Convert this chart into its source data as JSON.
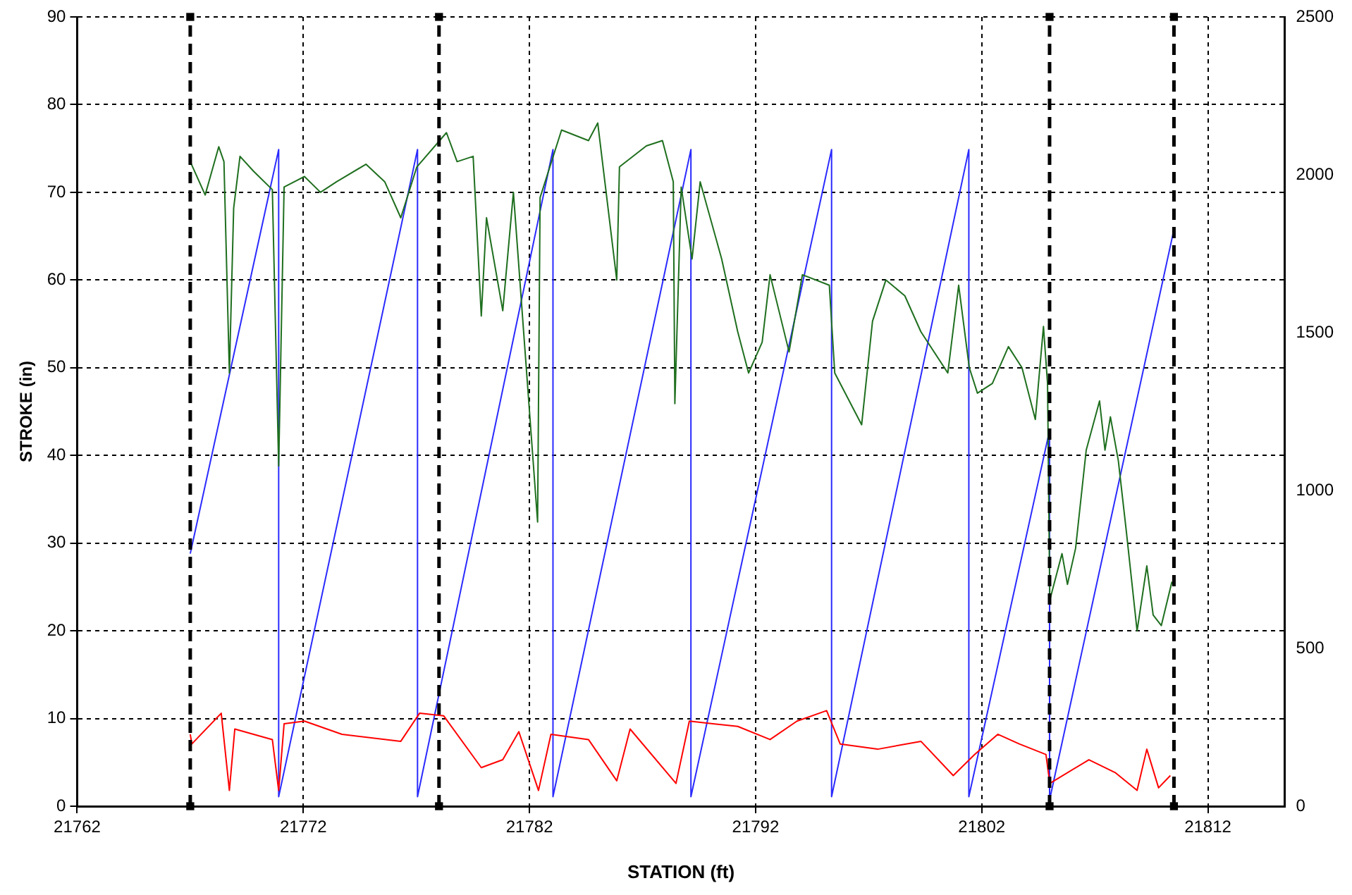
{
  "chart_data": {
    "type": "line",
    "xlabel": "STATION (ft)",
    "ylabel": "STROKE (in)",
    "xlim": [
      21762,
      21815.4
    ],
    "xticks": [
      21762,
      21772,
      21782,
      21792,
      21802,
      21812
    ],
    "ylim": [
      0,
      90
    ],
    "yticks": [
      0,
      10,
      20,
      30,
      40,
      50,
      60,
      70,
      80,
      90
    ],
    "y2lim": [
      0,
      2500
    ],
    "y2ticks": [
      0,
      500,
      1000,
      1500,
      2000,
      2500
    ],
    "grid": true,
    "legend": false,
    "marker": "none",
    "line_style": "solid",
    "series": [
      {
        "color": "#000000",
        "line_style": "dashed",
        "marker": "square",
        "x": [
          21767.0,
          21767.0
        ],
        "values": [
          0,
          90
        ]
      },
      {
        "color": "#000000",
        "line_style": "dashed",
        "marker": "square",
        "x": [
          21778.0,
          21778.0
        ],
        "values": [
          0,
          90
        ]
      },
      {
        "color": "#000000",
        "line_style": "dashed",
        "marker": "square",
        "x": [
          21805.0,
          21805.0
        ],
        "values": [
          0,
          90
        ]
      },
      {
        "color": "#000000",
        "line_style": "dashed",
        "marker": "square",
        "x": [
          21810.5,
          21810.5
        ],
        "values": [
          0,
          90
        ]
      },
      {
        "color": "#1f6f1f",
        "x": [
          21767.0,
          21767.66,
          21768.26,
          21768.49,
          21768.73,
          21768.92,
          21769.2,
          21769.8,
          21770.63,
          21770.91,
          21771.15,
          21772.05,
          21772.76,
          21773.47,
          21774.77,
          21775.6,
          21776.31,
          21777.02,
          21778.33,
          21778.8,
          21779.51,
          21779.87,
          21780.1,
          21780.82,
          21781.29,
          21782.36,
          21782.47,
          21783.42,
          21784.61,
          21785.02,
          21785.86,
          21785.98,
          21787.17,
          21787.88,
          21788.36,
          21788.43,
          21788.71,
          21789.19,
          21789.55,
          21790.5,
          21791.21,
          21791.69,
          21792.29,
          21792.64,
          21793.48,
          21794.07,
          21795.26,
          21795.5,
          21796.69,
          21797.17,
          21797.76,
          21798.6,
          21799.31,
          21800.5,
          21800.98,
          21801.45,
          21801.81,
          21802.47,
          21803.18,
          21803.78,
          21804.37,
          21804.73,
          21804.91,
          21805.01,
          21805.55,
          21805.79,
          21806.15,
          21806.62,
          21807.21,
          21807.45,
          21807.69,
          21808.04,
          21808.4,
          21808.87,
          21809.3,
          21809.58,
          21809.94,
          21810.41
        ],
        "values": [
          73.5,
          69.7,
          75.2,
          73.5,
          49.4,
          68.2,
          74.1,
          72.4,
          70.3,
          38.8,
          70.6,
          71.8,
          70.0,
          71.2,
          73.2,
          71.2,
          67.1,
          72.9,
          76.8,
          73.5,
          74.1,
          55.9,
          67.1,
          56.5,
          70.0,
          32.4,
          69.4,
          77.1,
          75.9,
          77.9,
          60.0,
          72.9,
          75.3,
          75.9,
          71.2,
          45.9,
          70.6,
          62.4,
          71.2,
          62.4,
          54.1,
          49.4,
          52.9,
          60.6,
          51.8,
          60.6,
          59.4,
          49.4,
          43.5,
          55.3,
          60.0,
          58.2,
          54.1,
          49.4,
          59.4,
          50.0,
          47.1,
          48.2,
          52.4,
          50.0,
          44.1,
          54.7,
          48.2,
          23.5,
          28.8,
          25.3,
          29.4,
          40.6,
          46.2,
          40.6,
          44.4,
          39.4,
          31.2,
          20.0,
          27.4,
          21.8,
          20.6,
          25.6
        ]
      },
      {
        "color": "#ff0000",
        "x": [
          21767.0,
          21767.07,
          21768.37,
          21768.73,
          21768.97,
          21770.63,
          21770.91,
          21771.15,
          21772.05,
          21773.71,
          21776.31,
          21777.14,
          21778.21,
          21779.87,
          21780.82,
          21781.53,
          21782.4,
          21782.95,
          21784.61,
          21785.86,
          21786.45,
          21788.48,
          21789.07,
          21791.21,
          21792.64,
          21793.83,
          21795.14,
          21795.74,
          21797.4,
          21799.31,
          21800.74,
          21801.69,
          21802.71,
          21803.66,
          21804.84,
          21805.01,
          21806.74,
          21807.92,
          21808.87,
          21809.3,
          21809.82,
          21810.34
        ],
        "values": [
          8.2,
          7.1,
          10.6,
          1.8,
          8.8,
          7.6,
          1.8,
          9.4,
          9.7,
          8.2,
          7.4,
          10.6,
          10.3,
          4.4,
          5.3,
          8.5,
          1.8,
          8.2,
          7.6,
          2.9,
          8.8,
          2.6,
          9.7,
          9.1,
          7.6,
          9.7,
          10.9,
          7.1,
          6.5,
          7.4,
          3.5,
          5.9,
          8.2,
          7.1,
          5.9,
          2.6,
          5.3,
          3.8,
          1.8,
          6.5,
          2.1,
          3.5
        ]
      },
      {
        "color": "#2a2aff",
        "axis": "y2",
        "x": [
          21767.0,
          21770.91,
          21770.91,
          21777.05,
          21777.05,
          21783.04,
          21783.04,
          21789.14,
          21789.14,
          21795.36,
          21795.36,
          21801.43,
          21801.43,
          21805.0,
          21805.0,
          21810.48
        ],
        "values": [
          800,
          2080,
          30,
          2080,
          30,
          2080,
          30,
          2080,
          30,
          2080,
          30,
          2080,
          30,
          1190,
          20,
          1820
        ]
      }
    ]
  }
}
